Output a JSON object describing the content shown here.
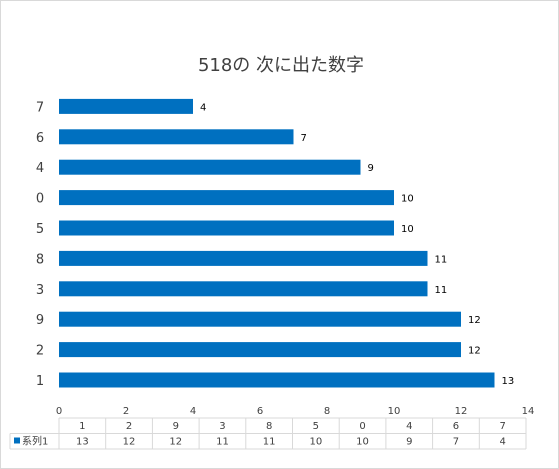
{
  "chart_data": {
    "type": "bar",
    "orientation": "horizontal",
    "title": "518の 次に出た数字",
    "categories": [
      "1",
      "2",
      "9",
      "3",
      "8",
      "5",
      "0",
      "4",
      "6",
      "7"
    ],
    "series": [
      {
        "name": "系列1",
        "values": [
          13,
          12,
          12,
          11,
          11,
          10,
          10,
          9,
          7,
          4
        ],
        "color": "#0070c0"
      }
    ],
    "xlim": [
      0,
      14
    ],
    "x_ticks": [
      0,
      2,
      4,
      6,
      8,
      10,
      12,
      14
    ],
    "grid": false,
    "data_labels": true,
    "data_table": true
  }
}
